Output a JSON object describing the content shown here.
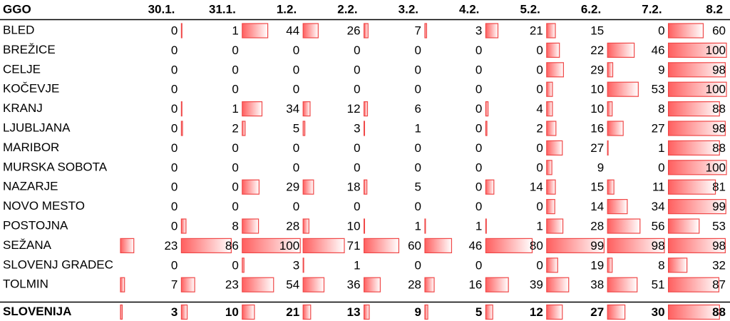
{
  "table": {
    "header": [
      "GGO",
      "30.1.",
      "31.1.",
      "1.2.",
      "2.2.",
      "3.2.",
      "4.2.",
      "5.2.",
      "6.2.",
      "7.2.",
      "8.2"
    ],
    "rows": [
      [
        "BLED",
        0,
        1,
        44,
        26,
        7,
        3,
        21,
        15,
        0,
        60
      ],
      [
        "BREŽICE",
        0,
        0,
        0,
        0,
        0,
        0,
        0,
        22,
        46,
        100
      ],
      [
        "CELJE",
        0,
        0,
        0,
        0,
        0,
        0,
        0,
        29,
        9,
        98
      ],
      [
        "KOČEVJE",
        0,
        0,
        0,
        0,
        0,
        0,
        0,
        10,
        53,
        100
      ],
      [
        "KRANJ",
        0,
        1,
        34,
        12,
        6,
        0,
        4,
        10,
        8,
        88
      ],
      [
        "LJUBLJANA",
        0,
        2,
        5,
        3,
        1,
        0,
        2,
        16,
        27,
        98
      ],
      [
        "MARIBOR",
        0,
        0,
        0,
        0,
        0,
        0,
        0,
        27,
        1,
        88
      ],
      [
        "MURSKA SOBOTA",
        0,
        0,
        0,
        0,
        0,
        0,
        0,
        9,
        0,
        100
      ],
      [
        "NAZARJE",
        0,
        0,
        29,
        18,
        5,
        0,
        14,
        15,
        11,
        81
      ],
      [
        "NOVO MESTO",
        0,
        0,
        0,
        0,
        0,
        0,
        0,
        14,
        34,
        99
      ],
      [
        "POSTOJNA",
        0,
        8,
        28,
        10,
        1,
        1,
        1,
        28,
        56,
        53
      ],
      [
        "SEŽANA",
        23,
        86,
        100,
        71,
        60,
        46,
        80,
        99,
        98,
        98
      ],
      [
        "SLOVENJ GRADEC",
        0,
        0,
        3,
        1,
        0,
        0,
        0,
        19,
        8,
        32
      ],
      [
        "TOLMIN",
        7,
        23,
        54,
        36,
        28,
        16,
        39,
        38,
        51,
        87
      ]
    ],
    "total": [
      "SLOVENIJA",
      3,
      10,
      21,
      13,
      9,
      5,
      12,
      27,
      30,
      88
    ],
    "bar_range": [
      0,
      100
    ]
  }
}
